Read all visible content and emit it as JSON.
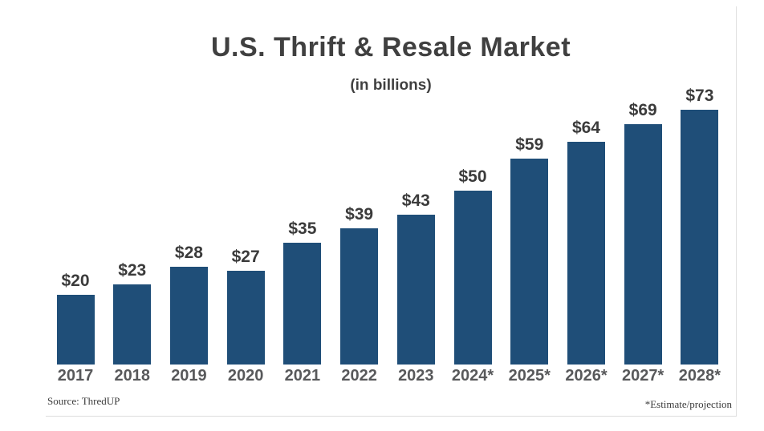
{
  "chart_data": {
    "type": "bar",
    "title": "U.S. Thrift & Resale Market",
    "subtitle": "(in billions)",
    "categories": [
      "2017",
      "2018",
      "2019",
      "2020",
      "2021",
      "2022",
      "2023",
      "2024*",
      "2025*",
      "2026*",
      "2027*",
      "2028*"
    ],
    "values": [
      20,
      23,
      28,
      27,
      35,
      39,
      43,
      50,
      59,
      64,
      69,
      73
    ],
    "value_labels": [
      "$20",
      "$23",
      "$28",
      "$27",
      "$35",
      "$39",
      "$43",
      "$50",
      "$59",
      "$64",
      "$69",
      "$73"
    ],
    "unit": "USD billions",
    "ylim": [
      0,
      75
    ],
    "grid": false,
    "legend": "none",
    "bar_color": "#1f4e78",
    "source": "Source: ThredUP",
    "footnote": "*Estimate/projection"
  },
  "colors": {
    "bar": "#1f4e78",
    "title_text": "#404040",
    "value_text": "#3b3b3b",
    "year_text": "#58595b",
    "card_border": "#e0e0e0",
    "background": "#ffffff"
  }
}
